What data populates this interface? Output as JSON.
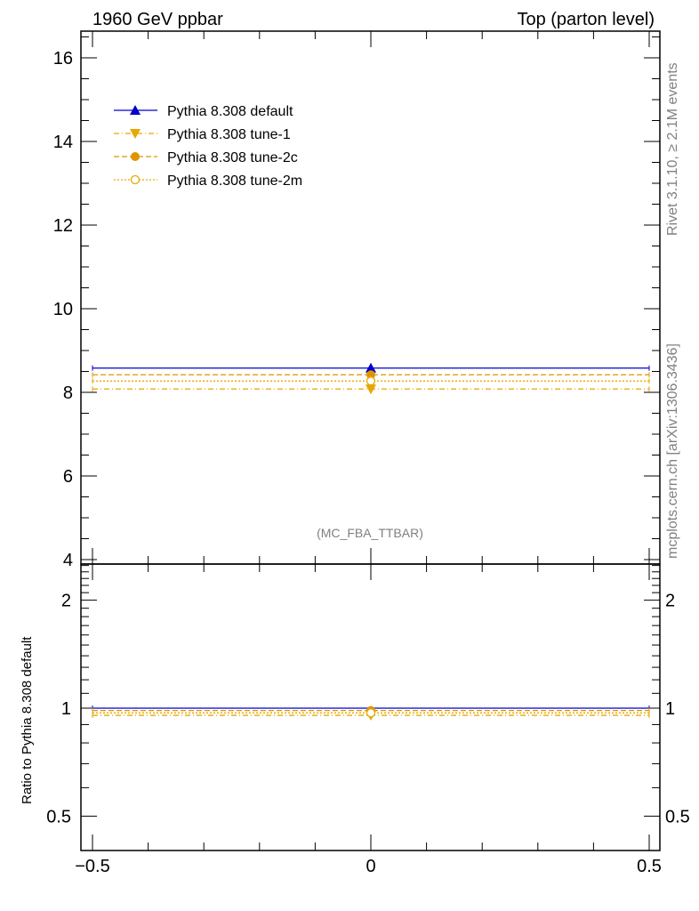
{
  "header": {
    "left": "1960 GeV ppbar",
    "right": "Top (parton level)"
  },
  "side_text": {
    "rivet": "Rivet 3.1.10, ≥ 2.1M events",
    "mcplots": "mcplots.cern.ch [arXiv:1306.3436]"
  },
  "analysis_label": "(MC_FBA_TTBAR)",
  "colors": {
    "default": "#0000cc",
    "tune1": "#e6a800",
    "tune2c": "#e09400",
    "tune2m": "#e6a800"
  },
  "chart_data": [
    {
      "type": "line",
      "panel": "main",
      "title": "",
      "xlabel": "",
      "ylabel": "",
      "xlim": [
        -0.5,
        0.5
      ],
      "ylim": [
        4,
        16.6
      ],
      "y_tick_labels": [
        "4",
        "6",
        "8",
        "10",
        "12",
        "14",
        "16"
      ],
      "legend_position": "top-left",
      "series": [
        {
          "name": "Pythia 8.308 default",
          "x": [
            0
          ],
          "xerr": [
            0.5
          ],
          "values": [
            8.58
          ],
          "marker": "triangle-up-filled",
          "dash": "solid",
          "color_key": "default"
        },
        {
          "name": "Pythia 8.308 tune-1",
          "x": [
            0
          ],
          "xerr": [
            0.5
          ],
          "values": [
            8.08
          ],
          "marker": "triangle-down-filled",
          "dash": "dashdot",
          "color_key": "tune1"
        },
        {
          "name": "Pythia 8.308 tune-2c",
          "x": [
            0
          ],
          "xerr": [
            0.5
          ],
          "values": [
            8.42
          ],
          "marker": "circle-filled",
          "dash": "dashed",
          "color_key": "tune2c"
        },
        {
          "name": "Pythia 8.308 tune-2m",
          "x": [
            0
          ],
          "xerr": [
            0.5
          ],
          "values": [
            8.27
          ],
          "marker": "circle-open",
          "dash": "dotted",
          "color_key": "tune2m"
        }
      ]
    },
    {
      "type": "line",
      "panel": "ratio",
      "title": "",
      "xlabel": "",
      "ylabel": "Ratio to Pythia 8.308 default",
      "xlim": [
        -0.5,
        0.5
      ],
      "ylim": [
        0.4,
        2.5
      ],
      "yscale": "log",
      "y_tick_labels": [
        "0.5",
        "1",
        "2"
      ],
      "x_tick_labels": [
        "−0.5",
        "0",
        "0.5"
      ],
      "series": [
        {
          "name": "Pythia 8.308 default",
          "x": [
            0
          ],
          "xerr": [
            0.5
          ],
          "values": [
            1.0
          ],
          "marker": "none",
          "dash": "solid",
          "color_key": "default"
        },
        {
          "name": "Pythia 8.308 tune-1",
          "x": [
            0
          ],
          "xerr": [
            0.5
          ],
          "values": [
            0.955
          ],
          "marker": "triangle-down-filled",
          "dash": "dashdot",
          "color_key": "tune1"
        },
        {
          "name": "Pythia 8.308 tune-2c",
          "x": [
            0
          ],
          "xerr": [
            0.5
          ],
          "values": [
            0.985
          ],
          "marker": "circle-filled",
          "dash": "dashed",
          "color_key": "tune2c"
        },
        {
          "name": "Pythia 8.308 tune-2m",
          "x": [
            0
          ],
          "xerr": [
            0.5
          ],
          "values": [
            0.97
          ],
          "marker": "circle-open",
          "dash": "dotted",
          "color_key": "tune2m"
        }
      ]
    }
  ]
}
